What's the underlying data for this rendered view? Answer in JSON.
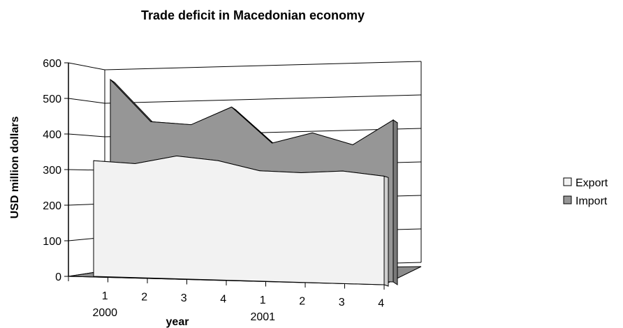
{
  "chart_data": {
    "type": "area",
    "title": "Trade deficit in Macedonian economy",
    "xlabel": "year",
    "ylabel": "USD million dollars",
    "ylim": [
      0,
      600
    ],
    "yticks": [
      "0",
      "100",
      "200",
      "300",
      "400",
      "500",
      "600"
    ],
    "categories": [
      "1",
      "2",
      "3",
      "4",
      "1",
      "2",
      "3",
      "4"
    ],
    "year_labels": [
      {
        "label": "2000",
        "category_index": 0
      },
      {
        "label": "2001",
        "category_index": 4
      }
    ],
    "grid": true,
    "three_d": true,
    "legend_position": "right",
    "series": [
      {
        "name": "Export",
        "color": "#f2f2f2",
        "values": [
          325,
          320,
          345,
          335,
          310,
          308,
          316,
          305
        ]
      },
      {
        "name": "Import",
        "color": "#969696",
        "values": [
          545,
          430,
          425,
          478,
          380,
          412,
          382,
          455
        ]
      }
    ]
  }
}
